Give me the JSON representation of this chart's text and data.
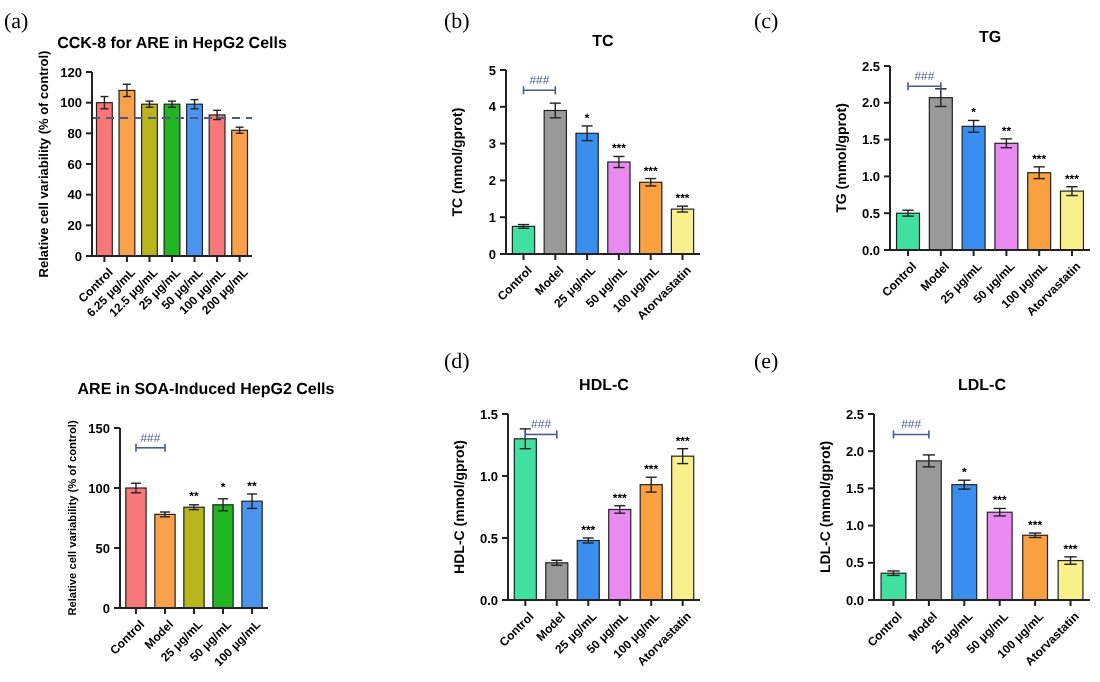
{
  "chart_data": [
    {
      "type": "bar",
      "title": "CCK-8  for ARE in  HepG2 Cells",
      "ylabel": "Relative cell variability (% of control)",
      "categories": [
        "Control",
        "6.25 μg/mL",
        "12.5 μg/mL",
        "25 μg/mL",
        "50 μg/mL",
        "100 μg/mL",
        "200 μg/mL"
      ],
      "values": [
        100,
        108,
        99,
        99,
        99,
        92,
        82
      ],
      "errors": [
        4,
        4,
        2,
        2,
        3,
        3,
        2
      ],
      "colors": [
        "#f8787a",
        "#f9a04a",
        "#b8b61c",
        "#22b522",
        "#4b95ef",
        "#f8787a",
        "#f9a04a"
      ],
      "ylim": [
        0,
        120
      ],
      "yticks": [
        0,
        20,
        40,
        60,
        80,
        100,
        120
      ],
      "ref_lines": [
        {
          "axis": "y",
          "value": 90,
          "color": "#4a5a8a",
          "line_style": "dashed"
        }
      ],
      "annotations": [
        "(a)"
      ]
    },
    {
      "type": "bar",
      "title": "ARE in SOA-Induced HepG2 Cells",
      "ylabel": "Relative cell variability (% of control)",
      "categories": [
        "Control",
        "Model",
        "25 μg/mL",
        "50 μg/mL",
        "100 μg/mL"
      ],
      "values": [
        100,
        78,
        84,
        86,
        89
      ],
      "errors": [
        4,
        2,
        2,
        5,
        6
      ],
      "colors": [
        "#f8787a",
        "#f9a04a",
        "#b8b61c",
        "#22b522",
        "#4b95ef"
      ],
      "ylim": [
        0,
        150
      ],
      "yticks": [
        0,
        50,
        100,
        150
      ],
      "annotations": [
        "###",
        {
          "text": "**",
          "x": "25 μg/mL",
          "y": 87
        },
        {
          "text": "*",
          "x": "50 μg/mL",
          "y": 94
        },
        {
          "text": "**",
          "x": "100 μg/mL",
          "y": 95
        }
      ]
    },
    {
      "type": "bar",
      "title": "TC",
      "ylabel": "TC (mmol/gprot)",
      "categories": [
        "Control",
        "Model",
        "25 μg/mL",
        "50 μg/mL",
        "100 μg/mL",
        "Atorvastatin"
      ],
      "values": [
        0.75,
        3.9,
        3.28,
        2.5,
        1.95,
        1.22
      ],
      "errors": [
        0.05,
        0.2,
        0.2,
        0.15,
        0.1,
        0.08
      ],
      "colors": [
        "#40e0a0",
        "#999999",
        "#3a8ef0",
        "#e98af0",
        "#f9a040",
        "#f8f08a"
      ],
      "ylim": [
        0,
        5
      ],
      "yticks": [
        0,
        1,
        2,
        3,
        4,
        5
      ],
      "annotations": [
        "(b)",
        "###",
        {
          "text": "*",
          "x": "25 μg/mL",
          "y": 3.48
        },
        {
          "text": "***",
          "x": "50 μg/mL",
          "y": 2.65
        },
        {
          "text": "***",
          "x": "100 μg/mL",
          "y": 2.05
        },
        {
          "text": "***",
          "x": "Atorvastatin",
          "y": 1.3
        }
      ]
    },
    {
      "type": "bar",
      "title": "TG",
      "ylabel": "TG (mmol/gprot)",
      "categories": [
        "Control",
        "Model",
        "25 μg/mL",
        "50 μg/mL",
        "100 μg/mL",
        "Atorvastatin"
      ],
      "values": [
        0.5,
        2.07,
        1.68,
        1.45,
        1.05,
        0.8
      ],
      "errors": [
        0.04,
        0.12,
        0.08,
        0.06,
        0.08,
        0.06
      ],
      "colors": [
        "#40e0a0",
        "#999999",
        "#3a8ef0",
        "#e98af0",
        "#f9a040",
        "#f8f08a"
      ],
      "ylim": [
        0,
        2.5
      ],
      "yticks": [
        {
          "value": 0,
          "label": "0.0"
        },
        {
          "value": 0.5,
          "label": "0.5"
        },
        {
          "value": 1,
          "label": "1.0"
        },
        {
          "value": 1.5,
          "label": "1.5"
        },
        {
          "value": 2,
          "label": "2.0"
        },
        {
          "value": 2.5,
          "label": "2.5"
        }
      ],
      "annotations": [
        "(c)",
        "###",
        {
          "text": "*",
          "x": "25 μg/mL",
          "y": 1.76
        },
        {
          "text": "**",
          "x": "50 μg/mL",
          "y": 1.51
        },
        {
          "text": "***",
          "x": "100 μg/mL",
          "y": 1.13
        },
        {
          "text": "***",
          "x": "Atorvastatin",
          "y": 0.86
        }
      ]
    },
    {
      "type": "bar",
      "title": "HDL-C",
      "ylabel": "HDL-C (mmol/gprot)",
      "categories": [
        "Control",
        "Model",
        "25 μg/mL",
        "50 μg/mL",
        "100 μg/mL",
        "Atorvastatin"
      ],
      "values": [
        1.3,
        0.3,
        0.48,
        0.73,
        0.93,
        1.16
      ],
      "errors": [
        0.08,
        0.02,
        0.02,
        0.03,
        0.06,
        0.06
      ],
      "colors": [
        "#40e0a0",
        "#999999",
        "#3a8ef0",
        "#e98af0",
        "#f9a040",
        "#f8f08a"
      ],
      "ylim": [
        0,
        1.5
      ],
      "yticks": [
        {
          "value": 0,
          "label": "0.0"
        },
        {
          "value": 0.5,
          "label": "0.5"
        },
        {
          "value": 1,
          "label": "1.0"
        },
        {
          "value": 1.5,
          "label": "1.5"
        }
      ],
      "annotations": [
        "(d)",
        "###",
        {
          "text": "***",
          "x": "25 μg/mL",
          "y": 0.5
        },
        {
          "text": "***",
          "x": "50 μg/mL",
          "y": 0.76
        },
        {
          "text": "***",
          "x": "100 μg/mL",
          "y": 0.99
        },
        {
          "text": "***",
          "x": "Atorvastatin",
          "y": 1.22
        }
      ]
    },
    {
      "type": "bar",
      "title": "LDL-C",
      "ylabel": "LDL-C (mmol/gprot)",
      "categories": [
        "Control",
        "Model",
        "25 μg/mL",
        "50 μg/mL",
        "100 μg/mL",
        "Atorvastatin"
      ],
      "values": [
        0.36,
        1.87,
        1.55,
        1.18,
        0.87,
        0.53
      ],
      "errors": [
        0.03,
        0.08,
        0.06,
        0.05,
        0.03,
        0.05
      ],
      "colors": [
        "#40e0a0",
        "#999999",
        "#3a8ef0",
        "#e98af0",
        "#f9a040",
        "#f8f08a"
      ],
      "ylim": [
        0,
        2.5
      ],
      "yticks": [
        {
          "value": 0,
          "label": "0.0"
        },
        {
          "value": 0.5,
          "label": "0.5"
        },
        {
          "value": 1,
          "label": "1.0"
        },
        {
          "value": 1.5,
          "label": "1.5"
        },
        {
          "value": 2,
          "label": "2.0"
        },
        {
          "value": 2.5,
          "label": "2.5"
        }
      ],
      "annotations": [
        "(e)",
        "###",
        {
          "text": "*",
          "x": "25 μg/mL",
          "y": 1.61
        },
        {
          "text": "***",
          "x": "50 μg/mL",
          "y": 1.23
        },
        {
          "text": "***",
          "x": "100 μg/mL",
          "y": 0.9
        },
        {
          "text": "***",
          "x": "Atorvastatin",
          "y": 0.58
        }
      ]
    }
  ]
}
